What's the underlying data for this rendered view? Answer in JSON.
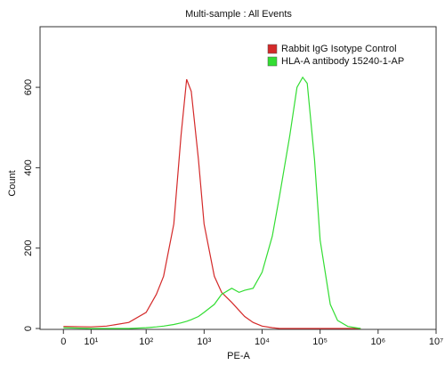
{
  "chart_data": {
    "type": "line",
    "title": "Multi-sample : All Events",
    "xlabel": "PE-A",
    "ylabel": "Count",
    "xscale": "biexponential",
    "x": [
      0,
      10,
      20,
      50,
      100,
      150,
      200,
      300,
      400,
      500,
      600,
      800,
      1000,
      1500,
      2000,
      3000,
      4000,
      5000,
      7000,
      10000,
      15000,
      20000,
      30000,
      40000,
      50000,
      60000,
      80000,
      100000,
      150000,
      200000,
      300000,
      500000
    ],
    "series": [
      {
        "name": "Rabbit IgG Isotype Control",
        "color": "#d42a2a",
        "values": [
          5,
          4,
          6,
          15,
          40,
          85,
          130,
          260,
          480,
          620,
          590,
          420,
          260,
          130,
          90,
          65,
          45,
          30,
          15,
          6,
          2,
          0,
          0,
          0,
          0,
          0,
          0,
          0,
          0,
          0,
          0,
          0
        ]
      },
      {
        "name": "HLA-A antibody 15240-1-AP",
        "color": "#33dd33",
        "values": [
          2,
          0,
          0,
          0,
          2,
          4,
          6,
          10,
          14,
          18,
          22,
          30,
          40,
          60,
          85,
          100,
          90,
          95,
          100,
          140,
          230,
          330,
          480,
          600,
          625,
          610,
          420,
          220,
          60,
          20,
          5,
          0
        ]
      }
    ],
    "xlim": [
      -8,
      10000000
    ],
    "xticks": [
      0,
      {
        "value": 10,
        "label": "10¹"
      },
      {
        "value": 100,
        "label": "10²"
      },
      {
        "value": 1000,
        "label": "10³"
      },
      {
        "value": 10000,
        "label": "10⁴"
      },
      {
        "value": 100000,
        "label": "10⁵"
      },
      {
        "value": 1000000,
        "label": "10⁶"
      },
      {
        "value": 10000000,
        "label": "10⁷"
      }
    ],
    "ylim": [
      0,
      722
    ],
    "yticks": [
      0,
      200,
      400,
      600
    ],
    "legend": "upper right"
  }
}
